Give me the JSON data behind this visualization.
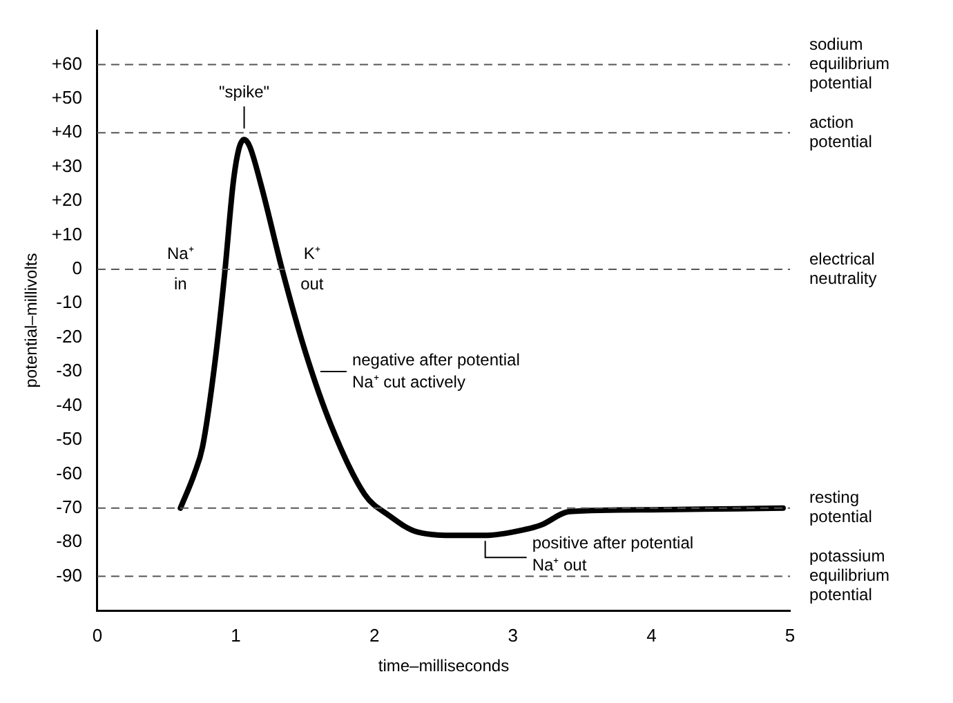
{
  "chart_data": {
    "type": "line",
    "xlabel": "time–milliseconds",
    "ylabel": "potential–millivolts",
    "series": [
      {
        "color": "#000000",
        "x": [
          0.6,
          0.7,
          0.76,
          0.85,
          0.92,
          0.98,
          1.02,
          1.06,
          1.1,
          1.18,
          1.34,
          1.5,
          1.69,
          1.93,
          2.1,
          2.31,
          2.6,
          2.8,
          3.0,
          3.2,
          3.41,
          4.0,
          4.95
        ],
        "values": [
          -70,
          -60,
          -52,
          -27,
          -1,
          25,
          35,
          38,
          36,
          25,
          -1,
          -24,
          -46,
          -66,
          -72,
          -77,
          -78,
          -78,
          -77,
          -75,
          -71,
          -70.5,
          -70
        ]
      }
    ],
    "xlim": [
      0,
      5
    ],
    "xticks": [
      0,
      1,
      2,
      3,
      4,
      5
    ],
    "ylim": [
      -100,
      70
    ],
    "yticks": [
      {
        "value": 60,
        "label": "+60"
      },
      {
        "value": 50,
        "label": "+50"
      },
      {
        "value": 40,
        "label": "+40"
      },
      {
        "value": 30,
        "label": "+30"
      },
      {
        "value": 20,
        "label": "+20"
      },
      {
        "value": 10,
        "label": "+10"
      },
      0,
      -10,
      -20,
      -30,
      -40,
      -50,
      -60,
      -70,
      -80,
      -90
    ],
    "ref_lines": [
      {
        "axis": "y",
        "value": 60,
        "label": "sodium\nequilibrium\npotential",
        "line_style": "dashed"
      },
      {
        "axis": "y",
        "value": 40,
        "label": "action\npotential",
        "line_style": "dashed"
      },
      {
        "axis": "y",
        "value": 0,
        "label": "electrical\nneutrality",
        "line_style": "dashed"
      },
      {
        "axis": "y",
        "value": -70,
        "label": "resting\npotential",
        "line_style": "dashed"
      },
      {
        "axis": "y",
        "value": -90,
        "label": "potassium\nequilibrium\npotential",
        "line_style": "dashed"
      }
    ],
    "annotations": [
      {
        "text": "\"spike\"",
        "x": 1.06,
        "y": 38
      },
      {
        "text": "Na⁺\nin",
        "x": 0.6,
        "y": 0
      },
      {
        "text": "K⁺\nout",
        "x": 1.55,
        "y": 0
      },
      {
        "text": "negative after potential\nNa⁺ cut actively",
        "x": 1.58,
        "y": -30
      },
      {
        "text": "positive after potential\nNa⁺ out",
        "x": 2.8,
        "y": -78
      }
    ],
    "grid": false,
    "legend": false,
    "marker": "none",
    "line_style": "solid"
  }
}
